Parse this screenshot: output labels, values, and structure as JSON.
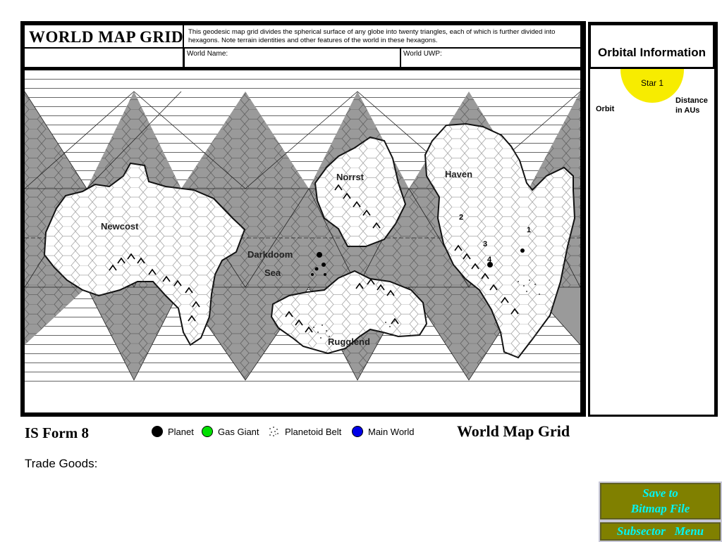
{
  "header": {
    "title": "WORLD MAP GRID",
    "description": "This geodesic map grid divides the spherical surface of any globe into twenty triangles, each of which is further divided into hexagons.  Note terrain identities and other features of the world in these hexagons.",
    "world_name_label": "World Name:",
    "world_uwp_label": "World UWP:"
  },
  "map": {
    "labels": {
      "newcost": "Newcost",
      "darkdoom": "Darkdoom",
      "sea": "Sea",
      "norrst": "Norrst",
      "haven": "Haven",
      "rugglend": "Rugglend"
    },
    "markers": [
      "1",
      "2",
      "3",
      "4"
    ],
    "colors": {
      "ocean": "#9a9a9a",
      "land": "#ffffff",
      "lines": "#6a6a6a"
    }
  },
  "orbital": {
    "title": "Orbital Information",
    "star_label": "Star 1",
    "orbit_label": "Orbit",
    "distance_label_1": "Distance",
    "distance_label_2": "in AUs",
    "star_color": "#f7ec00"
  },
  "footer": {
    "form_id": "IS Form 8",
    "form_name": "World Map Grid",
    "trade_goods_label": "Trade Goods:"
  },
  "legend": [
    {
      "label": "Planet",
      "color": "#000000",
      "icon": "planet-dot-icon"
    },
    {
      "label": "Gas Giant",
      "color": "#00e000",
      "icon": "gas-giant-dot-icon"
    },
    {
      "label": "Planetoid Belt",
      "color": "#c0c0c0",
      "icon": "planetoid-belt-icon"
    },
    {
      "label": "Main World",
      "color": "#0000e8",
      "icon": "main-world-dot-icon"
    }
  ],
  "buttons": {
    "save_line1": "Save to",
    "save_line2": "Bitmap File",
    "subsector_menu": "Subsector   Menu",
    "button_color": "#808000",
    "button_text_color": "#00f6f6"
  }
}
